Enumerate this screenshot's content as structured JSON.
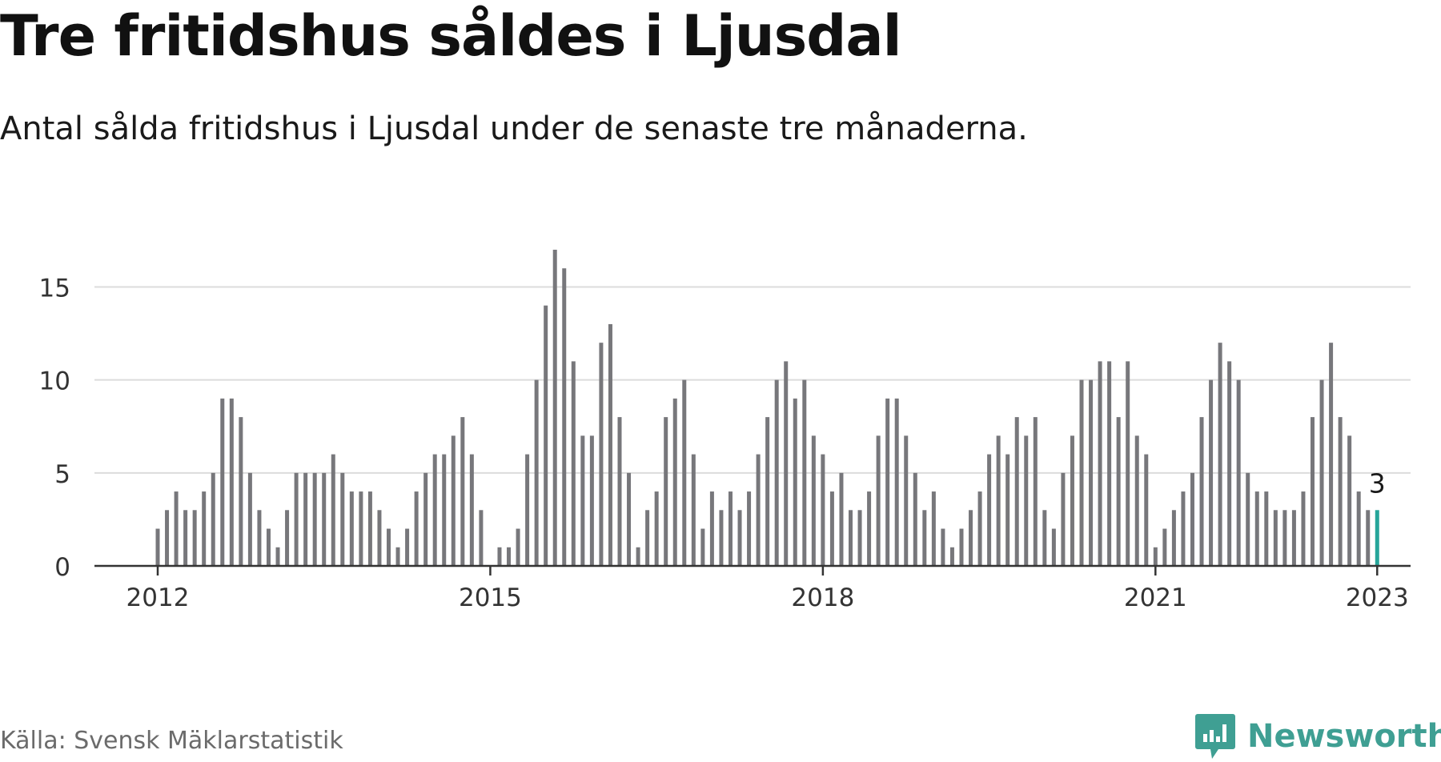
{
  "title": "Tre fritidshus såldes i Ljusdal",
  "subtitle": "Antal sålda fritidshus i Ljusdal under de senaste tre månaderna.",
  "source": "Källa: Svensk Mäklarstatistik",
  "brand": {
    "name": "Newsworthy",
    "logo_icon": "newsworthy-chart-bubble-icon"
  },
  "colors": {
    "bar": "#77777b",
    "highlight": "#26a59a",
    "grid": "#dcdcdc",
    "axis": "#333333",
    "brand": "#3f9f93"
  },
  "chart_data": {
    "type": "bar",
    "title": "Tre fritidshus såldes i Ljusdal",
    "subtitle": "Antal sålda fritidshus i Ljusdal under de senaste tre månaderna.",
    "xlabel": "",
    "ylabel": "",
    "x_start": "2012-01",
    "x_end": "2023-01",
    "xticks": [
      "2012",
      "2015",
      "2018",
      "2021",
      "2023"
    ],
    "yticks": [
      0,
      5,
      10,
      15
    ],
    "ylim": [
      0,
      17
    ],
    "grid": true,
    "legend": "none",
    "values": [
      2,
      3,
      4,
      3,
      3,
      4,
      5,
      9,
      9,
      8,
      5,
      3,
      2,
      1,
      3,
      5,
      5,
      5,
      5,
      6,
      5,
      4,
      4,
      4,
      3,
      2,
      1,
      2,
      4,
      5,
      6,
      6,
      7,
      8,
      6,
      3,
      0,
      1,
      1,
      2,
      6,
      10,
      14,
      17,
      16,
      11,
      7,
      7,
      12,
      13,
      8,
      5,
      1,
      3,
      4,
      8,
      9,
      10,
      6,
      2,
      4,
      3,
      4,
      3,
      4,
      6,
      8,
      10,
      11,
      9,
      10,
      7,
      6,
      4,
      5,
      3,
      3,
      4,
      7,
      9,
      9,
      7,
      5,
      3,
      4,
      2,
      1,
      2,
      3,
      4,
      6,
      7,
      6,
      8,
      7,
      8,
      3,
      2,
      5,
      7,
      10,
      10,
      11,
      11,
      8,
      11,
      7,
      6,
      1,
      2,
      3,
      4,
      5,
      8,
      10,
      12,
      11,
      10,
      5,
      4,
      4,
      3,
      3,
      3,
      4,
      8,
      10,
      12,
      8,
      7,
      4,
      3,
      3
    ],
    "highlight_last": true,
    "annotations": [
      {
        "label": "3",
        "at": "last"
      }
    ]
  }
}
